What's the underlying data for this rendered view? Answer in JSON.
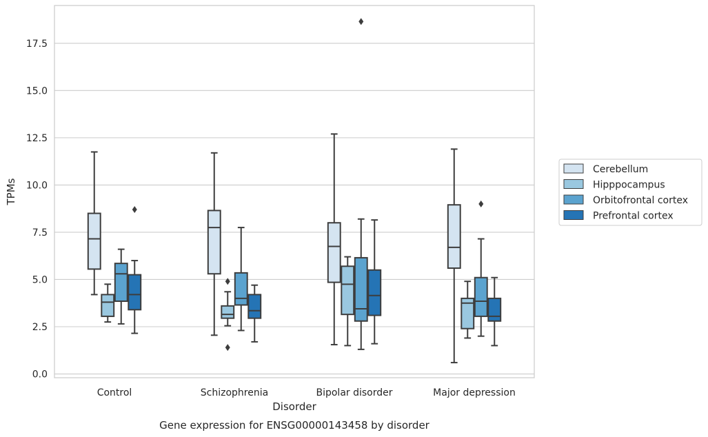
{
  "chart_data": {
    "type": "box",
    "xlabel": "Disorder",
    "ylabel": "TPMs",
    "caption": "Gene expression for ENSG00000143458 by disorder",
    "ylim": [
      -0.2,
      19.5
    ],
    "yticks": [
      0.0,
      2.5,
      5.0,
      7.5,
      10.0,
      12.5,
      15.0,
      17.5
    ],
    "ytick_labels": [
      "0.0",
      "2.5",
      "5.0",
      "7.5",
      "10.0",
      "12.5",
      "15.0",
      "17.5"
    ],
    "grid": "horizontal",
    "legend_position": "right",
    "categories": [
      "Control",
      "Schizophrenia",
      "Bipolar disorder",
      "Major depression"
    ],
    "series": [
      {
        "name": "Cerebellum",
        "color": "#d4e4f1",
        "boxes": [
          {
            "whisker_low": 4.2,
            "q1": 5.55,
            "median": 7.15,
            "q3": 8.5,
            "whisker_high": 11.75,
            "outliers": []
          },
          {
            "whisker_low": 2.05,
            "q1": 5.3,
            "median": 7.75,
            "q3": 8.65,
            "whisker_high": 11.7,
            "outliers": []
          },
          {
            "whisker_low": 1.55,
            "q1": 4.85,
            "median": 6.75,
            "q3": 8.0,
            "whisker_high": 12.7,
            "outliers": []
          },
          {
            "whisker_low": 0.6,
            "q1": 5.6,
            "median": 6.7,
            "q3": 8.95,
            "whisker_high": 11.9,
            "outliers": []
          }
        ]
      },
      {
        "name": "Hipppocampus",
        "color": "#9ac8e0",
        "boxes": [
          {
            "whisker_low": 2.75,
            "q1": 3.05,
            "median": 3.8,
            "q3": 4.2,
            "whisker_high": 4.75,
            "outliers": []
          },
          {
            "whisker_low": 2.55,
            "q1": 2.95,
            "median": 3.15,
            "q3": 3.6,
            "whisker_high": 4.35,
            "outliers": [
              4.9,
              1.4
            ]
          },
          {
            "whisker_low": 1.5,
            "q1": 3.15,
            "median": 4.75,
            "q3": 5.7,
            "whisker_high": 6.2,
            "outliers": []
          },
          {
            "whisker_low": 1.9,
            "q1": 2.4,
            "median": 3.75,
            "q3": 4.0,
            "whisker_high": 4.9,
            "outliers": []
          }
        ]
      },
      {
        "name": "Orbitofrontal cortex",
        "color": "#5ba3cf",
        "boxes": [
          {
            "whisker_low": 2.65,
            "q1": 3.85,
            "median": 5.3,
            "q3": 5.85,
            "whisker_high": 6.6,
            "outliers": []
          },
          {
            "whisker_low": 2.3,
            "q1": 3.65,
            "median": 4.0,
            "q3": 5.35,
            "whisker_high": 7.75,
            "outliers": []
          },
          {
            "whisker_low": 1.3,
            "q1": 2.8,
            "median": 3.45,
            "q3": 6.15,
            "whisker_high": 8.2,
            "outliers": [
              18.65
            ]
          },
          {
            "whisker_low": 2.0,
            "q1": 3.05,
            "median": 3.85,
            "q3": 5.1,
            "whisker_high": 7.15,
            "outliers": [
              9.0
            ]
          }
        ]
      },
      {
        "name": "Prefrontal cortex",
        "color": "#2574b5",
        "boxes": [
          {
            "whisker_low": 2.15,
            "q1": 3.4,
            "median": 4.2,
            "q3": 5.25,
            "whisker_high": 6.0,
            "outliers": [
              8.7
            ]
          },
          {
            "whisker_low": 1.7,
            "q1": 2.95,
            "median": 3.35,
            "q3": 4.2,
            "whisker_high": 4.7,
            "outliers": []
          },
          {
            "whisker_low": 1.6,
            "q1": 3.1,
            "median": 4.15,
            "q3": 5.5,
            "whisker_high": 8.15,
            "outliers": []
          },
          {
            "whisker_low": 1.5,
            "q1": 2.8,
            "median": 3.05,
            "q3": 4.0,
            "whisker_high": 5.1,
            "outliers": []
          }
        ]
      }
    ]
  }
}
